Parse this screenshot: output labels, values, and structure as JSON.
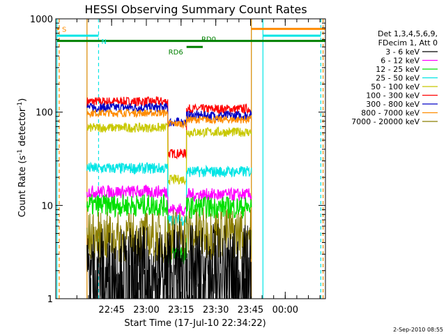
{
  "chart_data": {
    "type": "line",
    "title": "HESSI Observing Summary Count Rates",
    "xlabel": "Start Time (17-Jul-10 22:34:22)",
    "ylabel_main": "Count Rate (s",
    "ylabel_sup1": "-1",
    "ylabel_mid": " detector",
    "ylabel_sup2": "-1",
    "ylabel_end": ")",
    "y_scale": "log",
    "ylim": [
      1,
      1000
    ],
    "xlim_minutes": [
      -13.5,
      103
    ],
    "x_ticks": [
      "22:45",
      "23:00",
      "23:15",
      "23:30",
      "23:45",
      "00:00"
    ],
    "y_ticks": [
      "1",
      "10",
      "100",
      "1000"
    ],
    "footer_date": "2-Sep-2010 08:55",
    "legend": {
      "header1": "Det 1,3,4,5,6,9,",
      "header2": "FDecim 1, Att 0",
      "entries": [
        {
          "label": "3 - 6 keV",
          "color": "#000000"
        },
        {
          "label": "6 - 12 keV",
          "color": "#ff00ff"
        },
        {
          "label": "12 - 25 keV",
          "color": "#00e000"
        },
        {
          "label": "25 - 50 keV",
          "color": "#00e5e5"
        },
        {
          "label": "50 - 100 keV",
          "color": "#c8c800"
        },
        {
          "label": "100 - 300 keV",
          "color": "#ff0000"
        },
        {
          "label": "300 - 800 keV",
          "color": "#0000c8"
        },
        {
          "label": "800 - 7000 keV",
          "color": "#ff8c00"
        },
        {
          "label": "7000 - 20000 keV",
          "color": "#8b7d00"
        }
      ]
    },
    "segments": [
      {
        "start": 0,
        "end": 35
      },
      {
        "start": 35,
        "end": 43
      },
      {
        "start": 43,
        "end": 71
      }
    ],
    "series": [
      {
        "color": "#ff0000",
        "values": [
          130,
          36,
          108
        ]
      },
      {
        "color": "#0000c8",
        "values": [
          112,
          78,
          92
        ]
      },
      {
        "color": "#ff8c00",
        "values": [
          98,
          75,
          83
        ]
      },
      {
        "color": "#c8c800",
        "values": [
          68,
          19,
          61
        ]
      },
      {
        "color": "#00e5e5",
        "values": [
          25,
          7,
          23
        ]
      },
      {
        "color": "#ff00ff",
        "values": [
          14,
          9,
          13
        ]
      },
      {
        "color": "#00e000",
        "values": [
          10,
          3,
          9.5
        ]
      },
      {
        "color": "#8b7d00",
        "values": [
          4.5,
          5,
          5
        ]
      },
      {
        "color": "#000000",
        "values": [
          1.7,
          2.0,
          1.8
        ]
      }
    ],
    "annotations": [
      {
        "text": "S",
        "color": "#ff8c00"
      },
      {
        "text": "N",
        "color": "#00e5e5"
      },
      {
        "text": "RD6",
        "color": "#008000"
      },
      {
        "text": "RD0",
        "color": "#008000"
      }
    ],
    "flags": {
      "rd6_level": 500,
      "rd0_level": 580,
      "saa_level": 780,
      "night_level": 660,
      "saa_spans": [
        [
          -13,
          -12
        ],
        [
          71,
          103
        ]
      ],
      "night_spans": [
        [
          -13,
          5
        ],
        [
          76,
          101
        ]
      ],
      "rd6_span": [
        43,
        50
      ],
      "rd0_span": [
        -13,
        103
      ]
    },
    "vlines": {
      "cyan_solid": [
        -13,
        0,
        71,
        76
      ],
      "cyan_dashed": [
        5,
        101
      ],
      "orange_solid": [
        0,
        71
      ],
      "orange_dashed": [
        -12,
        102
      ]
    }
  }
}
